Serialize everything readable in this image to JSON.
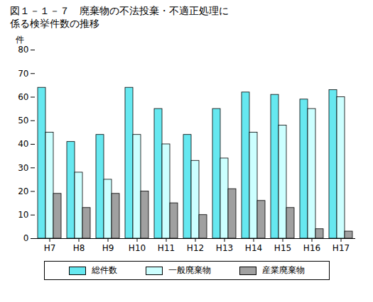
{
  "chart_data": {
    "type": "bar",
    "title": "図１－１－７　廃棄物の不法投棄・不適正処理に\n係る検挙件数の推移",
    "y_label": "件",
    "categories": [
      "H7",
      "H8",
      "H9",
      "H10",
      "H11",
      "H12",
      "H13",
      "H14",
      "H15",
      "H16",
      "H17"
    ],
    "series": [
      {
        "name": "総件数",
        "color": "#66e8f0",
        "values": [
          64,
          41,
          44,
          64,
          55,
          44,
          55,
          62,
          61,
          59,
          63
        ]
      },
      {
        "name": "一般廃棄物",
        "color": "#ccffff",
        "values": [
          45,
          28,
          25,
          44,
          40,
          33,
          34,
          45,
          48,
          55,
          60
        ]
      },
      {
        "name": "産業廃棄物",
        "color": "#a0a0a0",
        "values": [
          19,
          13,
          19,
          20,
          15,
          10,
          21,
          16,
          13,
          4,
          3
        ]
      }
    ],
    "ylim": [
      0,
      80
    ],
    "yticks": [
      0,
      10,
      20,
      30,
      40,
      50,
      60,
      70,
      80
    ],
    "legend": "bottom",
    "grid": false
  }
}
